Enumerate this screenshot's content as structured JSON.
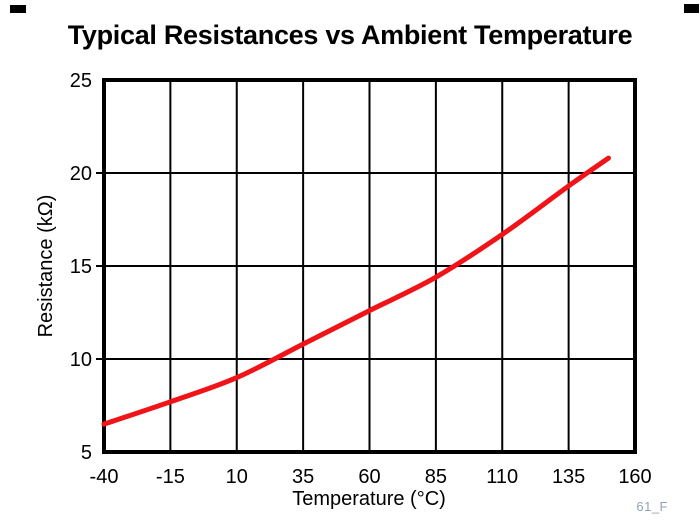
{
  "page": {
    "title": "Typical Resistances vs Ambient Temperature",
    "figure_code": "61_F"
  },
  "chart_data": {
    "type": "line",
    "title": "Typical Resistances vs Ambient Temperature",
    "xlabel": "Temperature (°C)",
    "ylabel": "Resistance (kΩ)",
    "xlim": [
      -40,
      160
    ],
    "ylim": [
      5,
      25
    ],
    "x_ticks": [
      -40,
      -15,
      10,
      35,
      60,
      85,
      110,
      135,
      160
    ],
    "y_ticks": [
      25,
      20,
      15,
      10,
      5
    ],
    "grid": true,
    "legend": false,
    "series": [
      {
        "name": "typical-resistance",
        "color": "#f01418",
        "points": [
          [
            -40,
            6.5
          ],
          [
            -15,
            7.7
          ],
          [
            10,
            9.0
          ],
          [
            35,
            10.8
          ],
          [
            60,
            12.6
          ],
          [
            85,
            14.4
          ],
          [
            110,
            16.7
          ],
          [
            135,
            19.3
          ],
          [
            150,
            20.8
          ]
        ]
      }
    ],
    "annotations": [
      "61_F"
    ]
  },
  "colors": {
    "curve": "#f01418",
    "axis": "#000000",
    "grid": "#000000",
    "fig_code": "#93a1b8",
    "background": "#ffffff"
  }
}
